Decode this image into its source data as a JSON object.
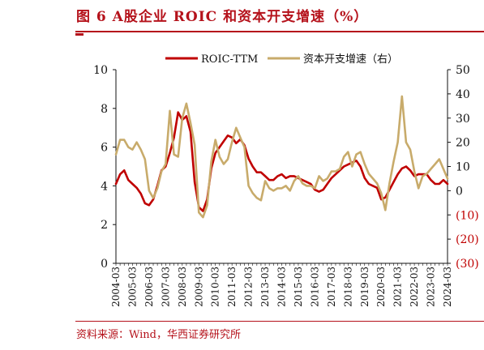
{
  "header": {
    "title": "图 6 A股企业 ROIC 和资本开支增速（%）"
  },
  "footer": {
    "source": "资料来源：Wind，华西证券研究所"
  },
  "colors": {
    "roic": "#c00000",
    "capex": "#c8ab6b",
    "accent": "#b5121b"
  },
  "chart_data": {
    "type": "line",
    "legend": {
      "placement": "top-center",
      "entries": [
        "ROIC-TTM",
        "资本开支增速（右）"
      ]
    },
    "x": [
      "2004-03",
      "2004-06",
      "2004-09",
      "2004-12",
      "2005-03",
      "2005-06",
      "2005-09",
      "2005-12",
      "2006-03",
      "2006-06",
      "2006-09",
      "2006-12",
      "2007-03",
      "2007-06",
      "2007-09",
      "2007-12",
      "2008-03",
      "2008-06",
      "2008-09",
      "2008-12",
      "2009-03",
      "2009-06",
      "2009-09",
      "2009-12",
      "2010-03",
      "2010-06",
      "2010-09",
      "2010-12",
      "2011-03",
      "2011-06",
      "2011-09",
      "2011-12",
      "2012-03",
      "2012-06",
      "2012-09",
      "2012-12",
      "2013-03",
      "2013-06",
      "2013-09",
      "2013-12",
      "2014-03",
      "2014-06",
      "2014-09",
      "2014-12",
      "2015-03",
      "2015-06",
      "2015-09",
      "2015-12",
      "2016-03",
      "2016-06",
      "2016-09",
      "2016-12",
      "2017-03",
      "2017-06",
      "2017-09",
      "2017-12",
      "2018-03",
      "2018-06",
      "2018-09",
      "2018-12",
      "2019-03",
      "2019-06",
      "2019-09",
      "2019-12",
      "2020-03",
      "2020-06",
      "2020-09",
      "2020-12",
      "2021-03",
      "2021-06",
      "2021-09",
      "2021-12",
      "2022-03",
      "2022-06",
      "2022-09",
      "2022-12",
      "2023-03",
      "2023-06",
      "2023-09",
      "2023-12",
      "2024-03"
    ],
    "x_tick_labels": [
      "2004-03",
      "2005-03",
      "2006-03",
      "2007-03",
      "2008-03",
      "2009-03",
      "2010-03",
      "2011-03",
      "2012-03",
      "2013-03",
      "2014-03",
      "2015-03",
      "2016-03",
      "2017-03",
      "2018-03",
      "2019-03",
      "2020-03",
      "2021-03",
      "2022-03",
      "2023-03",
      "2024-03"
    ],
    "series": [
      {
        "name": "ROIC-TTM",
        "axis": "left",
        "values": [
          4.1,
          4.6,
          4.8,
          4.3,
          4.1,
          3.9,
          3.6,
          3.1,
          3.0,
          3.3,
          4.0,
          4.8,
          5.0,
          5.7,
          6.5,
          7.8,
          7.4,
          7.6,
          6.8,
          4.2,
          2.9,
          2.7,
          3.3,
          4.9,
          5.7,
          6.0,
          6.3,
          6.6,
          6.5,
          6.2,
          6.4,
          6.1,
          5.4,
          5.0,
          4.7,
          4.7,
          4.5,
          4.3,
          4.3,
          4.5,
          4.6,
          4.4,
          4.5,
          4.5,
          4.4,
          4.3,
          4.2,
          4.1,
          3.8,
          3.7,
          3.8,
          4.1,
          4.4,
          4.6,
          4.8,
          5.0,
          5.1,
          5.2,
          5.3,
          5.0,
          4.4,
          4.1,
          4.0,
          3.9,
          3.3,
          3.4,
          3.8,
          4.2,
          4.6,
          4.9,
          5.0,
          4.8,
          4.5,
          4.6,
          4.6,
          4.6,
          4.3,
          4.1,
          4.1,
          4.3,
          4.1
        ]
      },
      {
        "name": "资本开支增速（右）",
        "axis": "right",
        "values": [
          15,
          21,
          21,
          18,
          17,
          20,
          17,
          13,
          0,
          -3,
          1,
          8,
          11,
          33,
          15,
          14,
          30,
          36,
          28,
          19,
          -9,
          -11,
          -6,
          12,
          21,
          14,
          11,
          13,
          20,
          26,
          22,
          18,
          2,
          -1,
          -3,
          -4,
          4,
          1,
          0,
          1,
          1,
          2,
          0,
          4,
          6,
          3,
          2,
          2,
          1,
          6,
          4,
          5,
          8,
          8,
          9,
          14,
          16,
          10,
          15,
          16,
          11,
          7,
          5,
          3,
          -1,
          -8,
          3,
          12,
          20,
          39,
          20,
          17,
          8,
          1,
          6,
          7,
          9,
          11,
          13,
          9,
          5
        ]
      }
    ],
    "left_axis": {
      "ylim": [
        0,
        10
      ],
      "ticks": [
        "0",
        "2",
        "4",
        "6",
        "8",
        "10"
      ]
    },
    "right_axis": {
      "ylim": [
        -30,
        50
      ],
      "ticks": [
        "(30)",
        "(20)",
        "(10)",
        "0",
        "10",
        "20",
        "30",
        "40",
        "50"
      ]
    },
    "grid": false
  }
}
